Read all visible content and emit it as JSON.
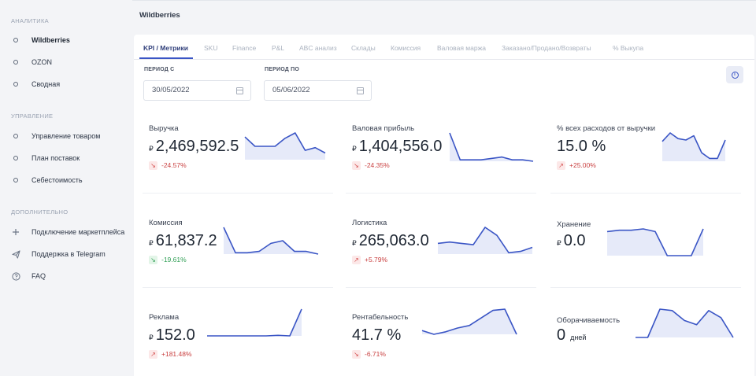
{
  "sidebar": {
    "sections": [
      {
        "title": "АНАЛИТИКА",
        "items": [
          {
            "label": "Wildberries",
            "icon": "circle-icon",
            "active": true
          },
          {
            "label": "OZON",
            "icon": "circle-icon"
          },
          {
            "label": "Сводная",
            "icon": "circle-icon"
          }
        ]
      },
      {
        "title": "УПРАВЛЕНИЕ",
        "items": [
          {
            "label": "Управление товаром",
            "icon": "circle-icon"
          },
          {
            "label": "План поставок",
            "icon": "circle-icon"
          },
          {
            "label": "Себестоимость",
            "icon": "circle-icon"
          }
        ]
      },
      {
        "title": "ДОПОЛНИТЕЛЬНО",
        "items": [
          {
            "label": "Подключение маркетплейса",
            "icon": "plus-icon"
          },
          {
            "label": "Поддержка в Telegram",
            "icon": "send-icon"
          },
          {
            "label": "FAQ",
            "icon": "help-circle-icon"
          }
        ]
      }
    ]
  },
  "header": {
    "title": "Wildberries"
  },
  "tabs": [
    "KPI / Метрики",
    "SKU",
    "Finance",
    "P&L",
    "ABC анализ",
    "Склады",
    "Комиссия",
    "Валовая маржа",
    "Заказано/Продано/Возвраты",
    "% Выкупа"
  ],
  "active_tab": 0,
  "filters": {
    "from_label": "ПЕРИОД С",
    "from_value": "30/05/2022",
    "to_label": "ПЕРИОД ПО",
    "to_value": "05/06/2022"
  },
  "colors": {
    "accent": "#3a55c5",
    "negative": "#c94040",
    "positive": "#2e9e53",
    "spark_fill": "#e6eaf9"
  },
  "kpis": [
    {
      "title": "Выручка",
      "prefix": "₽",
      "value": "2,469,592.5",
      "delta": "-24.57%",
      "trend": "neg",
      "spark": [
        0.85,
        0.5,
        0.5,
        0.5,
        0.8,
        1.0,
        0.35,
        0.45,
        0.25
      ]
    },
    {
      "title": "Валовая прибыль",
      "prefix": "₽",
      "value": "1,404,556.0",
      "delta": "-24.35%",
      "trend": "neg",
      "spark": [
        1.0,
        0.05,
        0.05,
        0.05,
        0.1,
        0.15,
        0.05,
        0.05,
        0.0
      ]
    },
    {
      "title": "% всех расходов от выручки",
      "prefix": "",
      "value": "15.0 %",
      "delta": "+25.00%",
      "trend": "neg",
      "spark": [
        0.7,
        1.0,
        0.8,
        0.75,
        0.9,
        0.3,
        0.1,
        0.1,
        0.75
      ]
    },
    {
      "title": "Комиссия",
      "prefix": "₽",
      "value": "61,837.2",
      "delta": "-19.61%",
      "trend": "pos",
      "spark": [
        1.0,
        0.05,
        0.05,
        0.1,
        0.4,
        0.5,
        0.1,
        0.1,
        0.0
      ]
    },
    {
      "title": "Логистика",
      "prefix": "₽",
      "value": "265,063.0",
      "delta": "+5.79%",
      "trend": "neg",
      "spark": [
        0.4,
        0.45,
        0.4,
        0.35,
        1.0,
        0.7,
        0.05,
        0.1,
        0.25
      ]
    },
    {
      "title": "Хранение",
      "prefix": "₽",
      "value": "0.0",
      "delta": "",
      "trend": "none",
      "spark": [
        0.9,
        0.95,
        0.95,
        1.0,
        0.9,
        0.0,
        0.0,
        0.0,
        1.0
      ]
    },
    {
      "title": "Реклама",
      "prefix": "₽",
      "value": "152.0",
      "delta": "+181.48%",
      "trend": "neg",
      "spark": [
        0.0,
        0.0,
        0.0,
        0.0,
        0.0,
        0.0,
        0.02,
        0.0,
        1.0
      ]
    },
    {
      "title": "Рентабельность",
      "prefix": "",
      "value": "41.7 %",
      "delta": "-6.71%",
      "trend": "neg",
      "spark": [
        0.15,
        0.0,
        0.1,
        0.25,
        0.35,
        0.65,
        0.95,
        1.0,
        0.0
      ]
    },
    {
      "title": "Оборачиваемость",
      "prefix": "",
      "value": "0",
      "unit": "дней",
      "delta": "",
      "trend": "none",
      "spark": [
        0.0,
        0.0,
        1.0,
        0.95,
        0.6,
        0.45,
        0.95,
        0.7,
        0.0
      ]
    }
  ]
}
